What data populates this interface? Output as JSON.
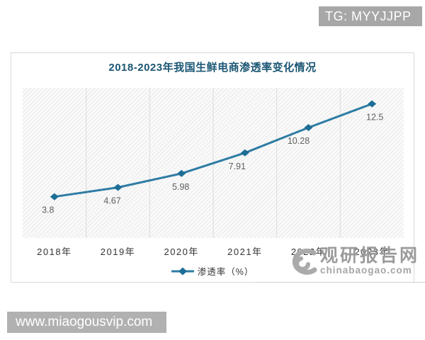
{
  "badge": {
    "text": "TG: MYYJJPP"
  },
  "chart": {
    "title": "2018-2023年我国生鲜电商渗透率变化情况",
    "legend_label": "渗透率（%）"
  },
  "chart_data": {
    "type": "line",
    "title": "2018-2023年我国生鲜电商渗透率变化情况",
    "categories": [
      "2018年",
      "2019年",
      "2020年",
      "2021年",
      "2022年",
      "2023年"
    ],
    "series": [
      {
        "name": "渗透率（%）",
        "values": [
          3.8,
          4.67,
          5.98,
          7.91,
          10.28,
          12.5
        ]
      }
    ],
    "data_labels": [
      "3.8",
      "4.67",
      "5.98",
      "7.91",
      "10.28",
      "12.5"
    ],
    "xlabel": "",
    "ylabel": "",
    "ylim": [
      0,
      14
    ],
    "grid": "vertical-split-lines",
    "legend_position": "bottom",
    "marker": "diamond",
    "plot_background": "diagonal-hatch",
    "line_color": "#2e7ca4",
    "marker_color": "#1d6e96",
    "label_color": "#606060",
    "grid_color": "#dcdcdc"
  },
  "watermark": {
    "logo": "swirl-logo",
    "name": "观研报告网",
    "domain": "chinabaogao.com"
  },
  "bottom_bar": {
    "text": "www.miaogousvip.com"
  }
}
